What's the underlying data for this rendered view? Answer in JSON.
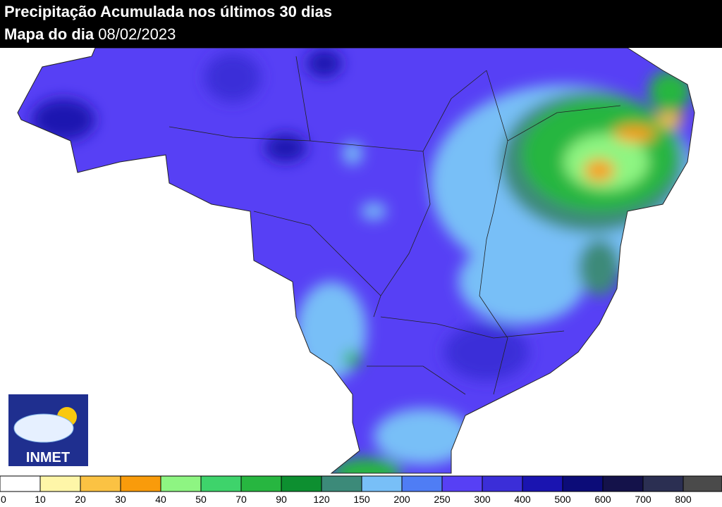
{
  "header": {
    "title": "Precipitação Acumulada nos últimos 30 dias",
    "subtitle_label": "Mapa do dia",
    "date": "08/02/2023"
  },
  "logo": {
    "text": "INMET"
  },
  "legend": {
    "labels": [
      0,
      10,
      20,
      30,
      40,
      50,
      70,
      90,
      120,
      150,
      200,
      250,
      300,
      400,
      500,
      600,
      700,
      800
    ],
    "colors": [
      "#ffffff",
      "#fef6a8",
      "#fbc243",
      "#f99b0b",
      "#8ef582",
      "#3ed36b",
      "#27b640",
      "#0d8f30",
      "#3c8a79",
      "#78bff7",
      "#4f7df5",
      "#5740f5",
      "#3b2ed8",
      "#1a14b0",
      "#0c0c78",
      "#14124a",
      "#2b2f52",
      "#4a4a4a"
    ]
  }
}
